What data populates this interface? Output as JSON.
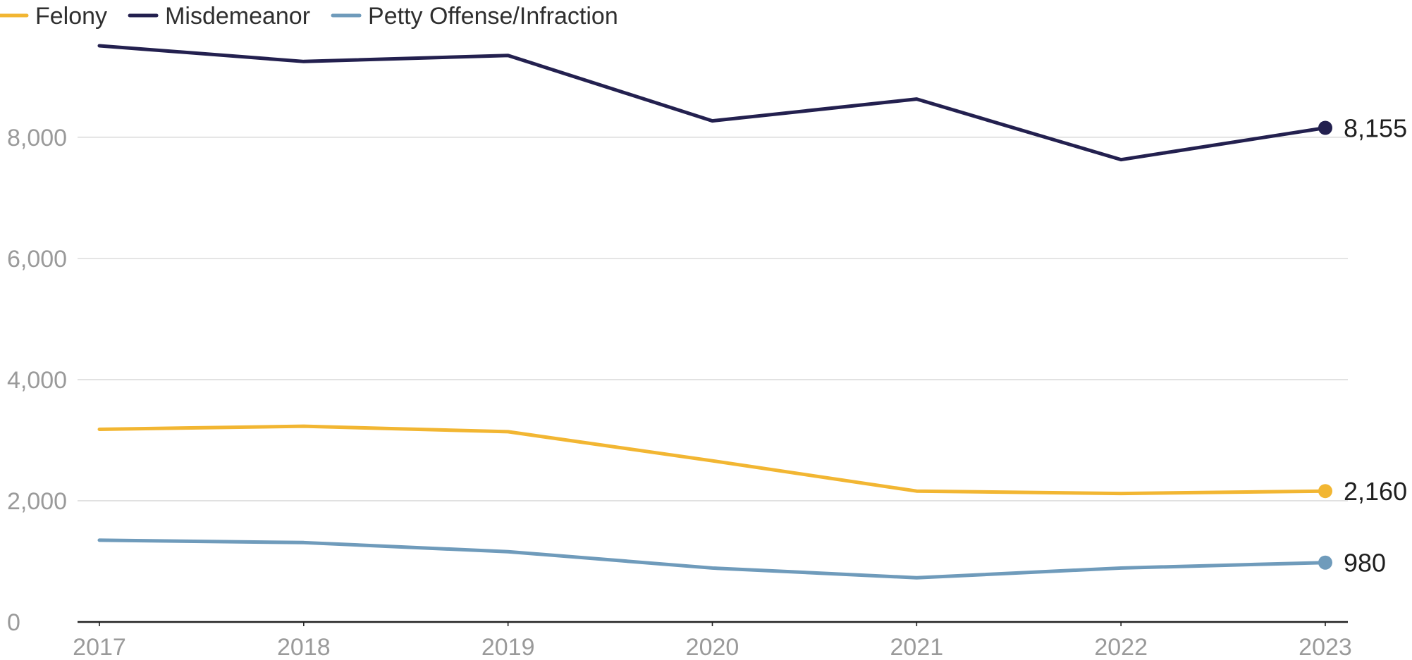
{
  "chart_data": {
    "type": "line",
    "title": "",
    "xlabel": "",
    "ylabel": "",
    "categories": [
      "2017",
      "2018",
      "2019",
      "2020",
      "2021",
      "2022",
      "2023"
    ],
    "ylim": [
      0,
      9800
    ],
    "yticks": [
      0,
      2000,
      4000,
      6000,
      8000
    ],
    "ytick_labels": [
      "0",
      "2,000",
      "4,000",
      "6,000",
      "8,000"
    ],
    "grid": true,
    "legend_position": "top-left",
    "series": [
      {
        "name": "Felony",
        "color": "#f2b632",
        "values": [
          3180,
          3230,
          3140,
          2660,
          2160,
          2120,
          2160
        ],
        "end_label": "2,160"
      },
      {
        "name": "Misdemeanor",
        "color": "#23204f",
        "values": [
          9510,
          9250,
          9350,
          8270,
          8630,
          7630,
          8155
        ],
        "end_label": "8,155"
      },
      {
        "name": "Petty Offense/Infraction",
        "color": "#6f9bbb",
        "values": [
          1350,
          1310,
          1160,
          890,
          730,
          890,
          980
        ],
        "end_label": "980"
      }
    ]
  }
}
